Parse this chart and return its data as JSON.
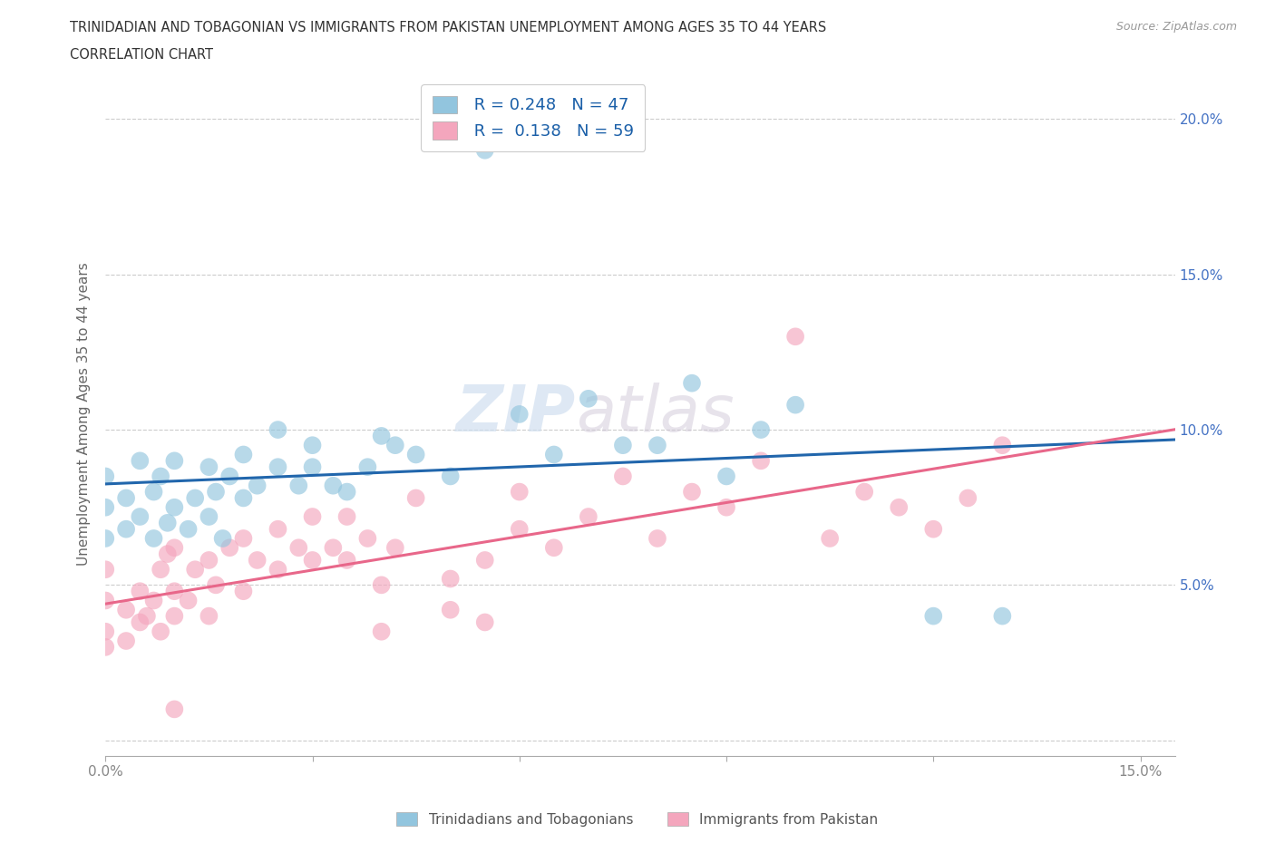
{
  "title_line1": "TRINIDADIAN AND TOBAGONIAN VS IMMIGRANTS FROM PAKISTAN UNEMPLOYMENT AMONG AGES 35 TO 44 YEARS",
  "title_line2": "CORRELATION CHART",
  "source_text": "Source: ZipAtlas.com",
  "ylabel": "Unemployment Among Ages 35 to 44 years",
  "xlim": [
    0.0,
    0.155
  ],
  "ylim": [
    -0.005,
    0.215
  ],
  "yticks": [
    0.0,
    0.05,
    0.1,
    0.15,
    0.2
  ],
  "yticklabels_right": [
    "",
    "5.0%",
    "10.0%",
    "15.0%",
    "20.0%"
  ],
  "xtick_positions": [
    0.0,
    0.03,
    0.06,
    0.09,
    0.12,
    0.15
  ],
  "xticklabels": [
    "0.0%",
    "",
    "",
    "",
    "",
    "15.0%"
  ],
  "legend_r1_prefix": "R = 0.248",
  "legend_r1_suffix": "N = 47",
  "legend_r2_prefix": "R =  0.138",
  "legend_r2_suffix": "N = 59",
  "color_blue": "#92c5de",
  "color_pink": "#f4a6bd",
  "line_color_blue": "#2166ac",
  "line_color_pink": "#e8678a",
  "watermark_zip": "ZIP",
  "watermark_atlas": "atlas",
  "grid_color": "#cccccc",
  "tick_color": "#888888",
  "label_color_right": "#4472c4",
  "blue_scatter_x": [
    0.0,
    0.0,
    0.0,
    0.003,
    0.003,
    0.005,
    0.005,
    0.007,
    0.007,
    0.008,
    0.009,
    0.01,
    0.01,
    0.012,
    0.013,
    0.015,
    0.015,
    0.016,
    0.017,
    0.018,
    0.02,
    0.02,
    0.022,
    0.025,
    0.025,
    0.028,
    0.03,
    0.03,
    0.033,
    0.035,
    0.038,
    0.04,
    0.042,
    0.045,
    0.05,
    0.055,
    0.06,
    0.065,
    0.07,
    0.075,
    0.08,
    0.085,
    0.09,
    0.095,
    0.1,
    0.12,
    0.13
  ],
  "blue_scatter_y": [
    0.065,
    0.075,
    0.085,
    0.068,
    0.078,
    0.072,
    0.09,
    0.065,
    0.08,
    0.085,
    0.07,
    0.075,
    0.09,
    0.068,
    0.078,
    0.072,
    0.088,
    0.08,
    0.065,
    0.085,
    0.078,
    0.092,
    0.082,
    0.088,
    0.1,
    0.082,
    0.088,
    0.095,
    0.082,
    0.08,
    0.088,
    0.098,
    0.095,
    0.092,
    0.085,
    0.19,
    0.105,
    0.092,
    0.11,
    0.095,
    0.095,
    0.115,
    0.085,
    0.1,
    0.108,
    0.04,
    0.04
  ],
  "pink_scatter_x": [
    0.0,
    0.0,
    0.0,
    0.0,
    0.003,
    0.003,
    0.005,
    0.005,
    0.006,
    0.007,
    0.008,
    0.008,
    0.009,
    0.01,
    0.01,
    0.01,
    0.012,
    0.013,
    0.015,
    0.015,
    0.016,
    0.018,
    0.02,
    0.02,
    0.022,
    0.025,
    0.025,
    0.028,
    0.03,
    0.03,
    0.033,
    0.035,
    0.035,
    0.038,
    0.04,
    0.04,
    0.042,
    0.045,
    0.05,
    0.05,
    0.055,
    0.055,
    0.06,
    0.06,
    0.065,
    0.07,
    0.075,
    0.08,
    0.085,
    0.09,
    0.095,
    0.1,
    0.105,
    0.11,
    0.115,
    0.12,
    0.125,
    0.13,
    0.01
  ],
  "pink_scatter_y": [
    0.03,
    0.035,
    0.045,
    0.055,
    0.032,
    0.042,
    0.038,
    0.048,
    0.04,
    0.045,
    0.035,
    0.055,
    0.06,
    0.04,
    0.048,
    0.062,
    0.045,
    0.055,
    0.04,
    0.058,
    0.05,
    0.062,
    0.048,
    0.065,
    0.058,
    0.055,
    0.068,
    0.062,
    0.058,
    0.072,
    0.062,
    0.058,
    0.072,
    0.065,
    0.035,
    0.05,
    0.062,
    0.078,
    0.042,
    0.052,
    0.038,
    0.058,
    0.068,
    0.08,
    0.062,
    0.072,
    0.085,
    0.065,
    0.08,
    0.075,
    0.09,
    0.13,
    0.065,
    0.08,
    0.075,
    0.068,
    0.078,
    0.095,
    0.01
  ]
}
